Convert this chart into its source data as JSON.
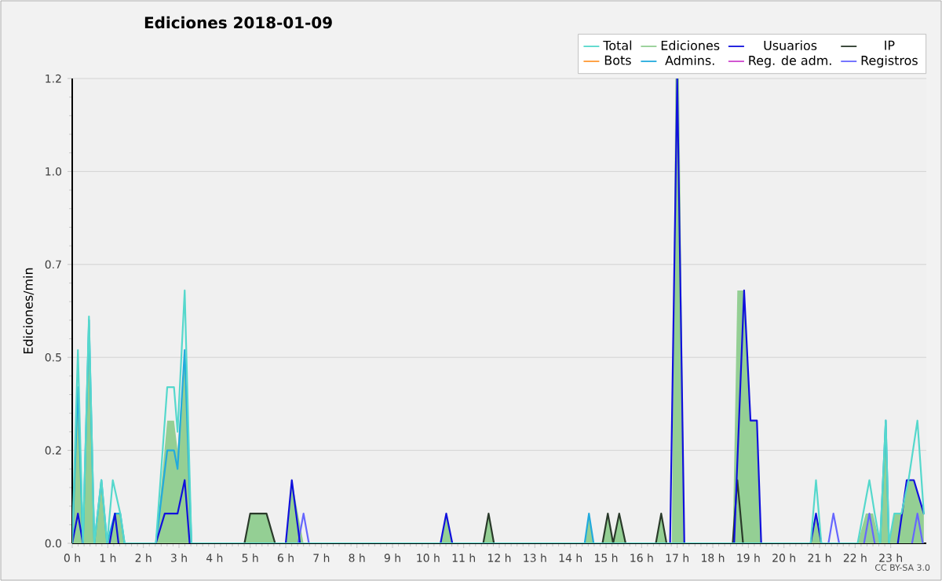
{
  "chart_data": {
    "type": "line",
    "title": "Ediciones  2018-01-09",
    "ylabel": "Ediciones/min",
    "xlim": [
      0,
      24
    ],
    "ylim": [
      0,
      1.25
    ],
    "xticks": [
      {
        "value": 0,
        "label": "0 h"
      },
      {
        "value": 1,
        "label": "1 h"
      },
      {
        "value": 2,
        "label": "2 h"
      },
      {
        "value": 3,
        "label": "3 h"
      },
      {
        "value": 4,
        "label": "4 h"
      },
      {
        "value": 5,
        "label": "5 h"
      },
      {
        "value": 6,
        "label": "6 h"
      },
      {
        "value": 7,
        "label": "7 h"
      },
      {
        "value": 8,
        "label": "8 h"
      },
      {
        "value": 9,
        "label": "9 h"
      },
      {
        "value": 10,
        "label": "10 h"
      },
      {
        "value": 11,
        "label": "11 h"
      },
      {
        "value": 12,
        "label": "12 h"
      },
      {
        "value": 13,
        "label": "13 h"
      },
      {
        "value": 14,
        "label": "14 h"
      },
      {
        "value": 15,
        "label": "15 h"
      },
      {
        "value": 16,
        "label": "16 h"
      },
      {
        "value": 17,
        "label": "17 h"
      },
      {
        "value": 18,
        "label": "18 h"
      },
      {
        "value": 19,
        "label": "19 h"
      },
      {
        "value": 20,
        "label": "20 h"
      },
      {
        "value": 21,
        "label": "21 h"
      },
      {
        "value": 22,
        "label": "22 h"
      },
      {
        "value": 23,
        "label": "23 h"
      }
    ],
    "yticks": [
      {
        "value": 0,
        "label": "0.0"
      },
      {
        "value": 0.25,
        "label": "0.2"
      },
      {
        "value": 0.5,
        "label": "0.5"
      },
      {
        "value": 0.75,
        "label": "0.7"
      },
      {
        "value": 1.0,
        "label": "1.0"
      },
      {
        "value": 1.25,
        "label": "1.2"
      }
    ],
    "grid": "y",
    "legend": "top right",
    "annotations": [
      "CC BY-SA 3.0"
    ],
    "series": [
      {
        "name": "Total",
        "color": "#55d8cc",
        "x": [
          0,
          0.16,
          0.3,
          0.47,
          0.62,
          0.82,
          0.98,
          1.14,
          1.35,
          1.47,
          2.35,
          2.67,
          2.86,
          2.96,
          3.16,
          3.35,
          20.75,
          20.9,
          21.05,
          22.07,
          22.4,
          22.55,
          22.7,
          22.86,
          22.95,
          23.1,
          23.3,
          23.5,
          23.75,
          23.93
        ],
        "values": [
          0,
          0.52,
          0,
          0.61,
          0,
          0.17,
          0,
          0.17,
          0.08,
          0,
          0,
          0.42,
          0.42,
          0.3,
          0.68,
          0,
          0,
          0.17,
          0,
          0,
          0.17,
          0.08,
          0,
          0.33,
          0,
          0.08,
          0.08,
          0.17,
          0.33,
          0.08
        ]
      },
      {
        "name": "Ediciones",
        "type": "area",
        "color": "#94cf94",
        "x": [
          0,
          0.16,
          0.3,
          0.47,
          0.62,
          0.82,
          0.98,
          1.2,
          1.35,
          1.47,
          2.35,
          2.67,
          2.86,
          2.96,
          3.16,
          3.35,
          4.84,
          5.0,
          5.46,
          5.7,
          6.0,
          6.17,
          6.5,
          10.35,
          10.51,
          10.68,
          11.55,
          11.7,
          11.85,
          14.4,
          14.52,
          14.65,
          14.9,
          15.05,
          15.2,
          15.37,
          15.55,
          16.4,
          16.55,
          16.7,
          16.85,
          16.95,
          17.05,
          17.2,
          18.56,
          18.69,
          18.88,
          19.06,
          19.24,
          19.36,
          20.75,
          20.9,
          21.05,
          22.07,
          22.3,
          22.5,
          22.7,
          22.86,
          22.95,
          23.1,
          23.3,
          23.45,
          23.65,
          23.93
        ],
        "values": [
          0,
          0.42,
          0,
          0.6,
          0,
          0.17,
          0,
          0.08,
          0.08,
          0,
          0,
          0.33,
          0.33,
          0.25,
          0.52,
          0,
          0,
          0.08,
          0.08,
          0,
          0,
          0.17,
          0,
          0,
          0.08,
          0,
          0,
          0.08,
          0,
          0,
          0.08,
          0,
          0,
          0.08,
          0,
          0.08,
          0,
          0,
          0.08,
          0,
          0,
          1.25,
          1.25,
          0,
          0,
          0.68,
          0.68,
          0.33,
          0.33,
          0,
          0,
          0.08,
          0,
          0,
          0.08,
          0.08,
          0,
          0.33,
          0,
          0.08,
          0.08,
          0.17,
          0.17,
          0.08
        ]
      },
      {
        "name": "Usuarios",
        "color": "#1010dd",
        "x": [
          0,
          0.16,
          0.3,
          0.4,
          1.05,
          1.2,
          1.3,
          1.4,
          2.35,
          2.6,
          2.96,
          3.16,
          3.3,
          4,
          6.0,
          6.17,
          6.4,
          8,
          10.35,
          10.51,
          10.68,
          12,
          16.8,
          17.0,
          17.2,
          18,
          18.6,
          18.88,
          19.06,
          19.24,
          19.36,
          20,
          20.75,
          20.9,
          21.05,
          22,
          23.2,
          23.45,
          23.65,
          23.93
        ],
        "values": [
          0,
          0.08,
          0,
          null,
          0,
          0.08,
          0,
          null,
          0,
          0.08,
          0.08,
          0.17,
          0,
          null,
          0,
          0.17,
          0,
          null,
          0,
          0.08,
          0,
          null,
          0,
          1.25,
          0,
          null,
          0,
          0.68,
          0.33,
          0.33,
          0,
          null,
          0,
          0.08,
          0,
          null,
          0,
          0.17,
          0.17,
          0.08
        ]
      },
      {
        "name": "IP",
        "color": "#2a3a2a",
        "x": [
          4.84,
          5.0,
          5.46,
          5.7,
          11.55,
          11.7,
          11.85,
          14.9,
          15.05,
          15.2,
          15.37,
          15.55,
          16.4,
          16.55,
          16.7,
          18.56,
          18.69,
          18.85
        ],
        "values": [
          0,
          0.08,
          0.08,
          0,
          0,
          0.08,
          0,
          0,
          0.08,
          0,
          0.08,
          0,
          0,
          0.08,
          0,
          0,
          0.17,
          0
        ]
      },
      {
        "name": "Bots",
        "color": "#ff9933"
      },
      {
        "name": "Admins.",
        "color": "#22aadd",
        "x": [
          0,
          0.16,
          0.3,
          0.47,
          0.62,
          0.82,
          0.98,
          1.2,
          1.35,
          1.47,
          2,
          2.35,
          2.67,
          2.86,
          2.96,
          3.16,
          3.35,
          10,
          14.4,
          14.52,
          14.65,
          20,
          22.7,
          22.86,
          22.95
        ],
        "values": [
          0,
          0.42,
          0,
          0.6,
          0,
          0.17,
          0,
          0.08,
          0.08,
          0,
          null,
          0,
          0.25,
          0.25,
          0.2,
          0.52,
          0,
          null,
          0,
          0.08,
          0,
          null,
          0,
          0.33,
          0
        ]
      },
      {
        "name": "Reg. de adm.",
        "color": "#cc44cc"
      },
      {
        "name": "Registros",
        "color": "#6666ff",
        "x": [
          6.35,
          6.5,
          6.65,
          10,
          21.25,
          21.39,
          21.55,
          22,
          22.25,
          22.4,
          22.55,
          23,
          23.6,
          23.75,
          23.9
        ],
        "values": [
          0,
          0.08,
          0,
          null,
          0,
          0.08,
          0,
          null,
          0,
          0.08,
          0,
          null,
          0,
          0.08,
          0
        ]
      }
    ]
  }
}
